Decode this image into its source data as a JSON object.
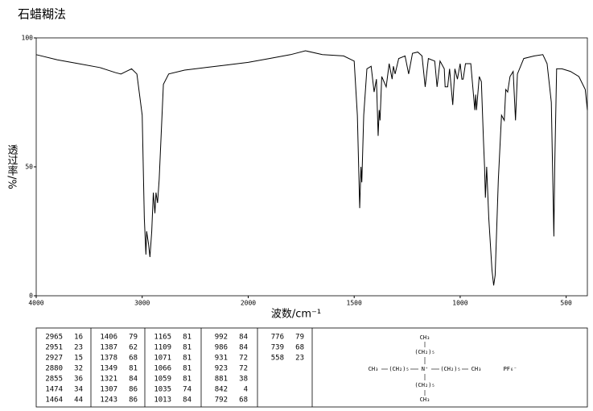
{
  "chart_data": {
    "type": "line",
    "title": "石蜡糊法",
    "xlabel": "波数/cm⁻¹",
    "ylabel": "透过率/%",
    "xlim": [
      4000,
      400
    ],
    "xscale_break": 2000,
    "ylim": [
      0,
      100
    ],
    "xticks": [
      4000,
      3000,
      2000,
      1500,
      1000,
      500
    ],
    "yticks": [
      0,
      50,
      100
    ],
    "color": "#000000",
    "x": [
      4000,
      3800,
      3600,
      3400,
      3250,
      3200,
      3150,
      3100,
      3050,
      3000,
      2980,
      2965,
      2958,
      2951,
      2940,
      2927,
      2910,
      2895,
      2880,
      2870,
      2855,
      2840,
      2800,
      2750,
      2600,
      2400,
      2200,
      2000,
      1900,
      1800,
      1730,
      1650,
      1550,
      1500,
      1485,
      1474,
      1468,
      1464,
      1455,
      1440,
      1420,
      1406,
      1395,
      1387,
      1382,
      1378,
      1370,
      1349,
      1335,
      1321,
      1315,
      1307,
      1290,
      1260,
      1243,
      1225,
      1200,
      1180,
      1165,
      1150,
      1120,
      1109,
      1095,
      1075,
      1071,
      1066,
      1059,
      1050,
      1035,
      1025,
      1013,
      1000,
      992,
      986,
      975,
      950,
      931,
      927,
      923,
      910,
      900,
      890,
      885,
      881,
      875,
      865,
      850,
      842,
      835,
      820,
      805,
      792,
      785,
      776,
      765,
      750,
      739,
      730,
      700,
      650,
      610,
      590,
      570,
      562,
      558,
      554,
      545,
      520,
      480,
      440,
      410,
      400
    ],
    "values": [
      93.5,
      91.5,
      90,
      88.5,
      86.5,
      86,
      87,
      88,
      86,
      70,
      30,
      16,
      25,
      23,
      20,
      15,
      25,
      40,
      32,
      40,
      36,
      45,
      82,
      86,
      87.5,
      88.5,
      89.5,
      90.5,
      92,
      93.5,
      95,
      93.5,
      93,
      91,
      70,
      34,
      50,
      44,
      70,
      88,
      89,
      79,
      84,
      62,
      72,
      68,
      85,
      81,
      90,
      84,
      89,
      86,
      92,
      93,
      86,
      94,
      94.5,
      93,
      81,
      92,
      91,
      81,
      91,
      88,
      81,
      81,
      81,
      88,
      74,
      88,
      84,
      90,
      84,
      84,
      90,
      90,
      72,
      78,
      72,
      85,
      83,
      60,
      50,
      38,
      50,
      30,
      10,
      4,
      8,
      45,
      70,
      68,
      80,
      79,
      85,
      87,
      68,
      86,
      92,
      93,
      93.5,
      90,
      75,
      40,
      23,
      50,
      88,
      88,
      87,
      85,
      80,
      72
    ]
  },
  "peak_table": [
    [
      [
        2965,
        16
      ],
      [
        2951,
        23
      ],
      [
        2927,
        15
      ],
      [
        2880,
        32
      ],
      [
        2855,
        36
      ],
      [
        1474,
        34
      ],
      [
        1464,
        44
      ]
    ],
    [
      [
        1406,
        79
      ],
      [
        1387,
        62
      ],
      [
        1378,
        68
      ],
      [
        1349,
        81
      ],
      [
        1321,
        84
      ],
      [
        1307,
        86
      ],
      [
        1243,
        86
      ]
    ],
    [
      [
        1165,
        81
      ],
      [
        1109,
        81
      ],
      [
        1071,
        81
      ],
      [
        1066,
        81
      ],
      [
        1059,
        81
      ],
      [
        1035,
        74
      ],
      [
        1013,
        84
      ]
    ],
    [
      [
        992,
        84
      ],
      [
        986,
        84
      ],
      [
        931,
        72
      ],
      [
        923,
        72
      ],
      [
        881,
        38
      ],
      [
        842,
        4
      ],
      [
        792,
        68
      ]
    ],
    [
      [
        776,
        79
      ],
      [
        739,
        68
      ],
      [
        558,
        23
      ]
    ]
  ],
  "structure": {
    "top_ch3": "CH₃",
    "top_chain": "(CH₂)₅",
    "left_ch3": "CH₃",
    "left_chain": "(CH₂)₅",
    "nitrogen": "N⁺",
    "right_chain": "(CH₂)₅",
    "right_ch3": "CH₃",
    "anion": "PF₆⁻",
    "bottom_chain": "(CH₂)₅",
    "bottom_ch3": "CH₃"
  }
}
